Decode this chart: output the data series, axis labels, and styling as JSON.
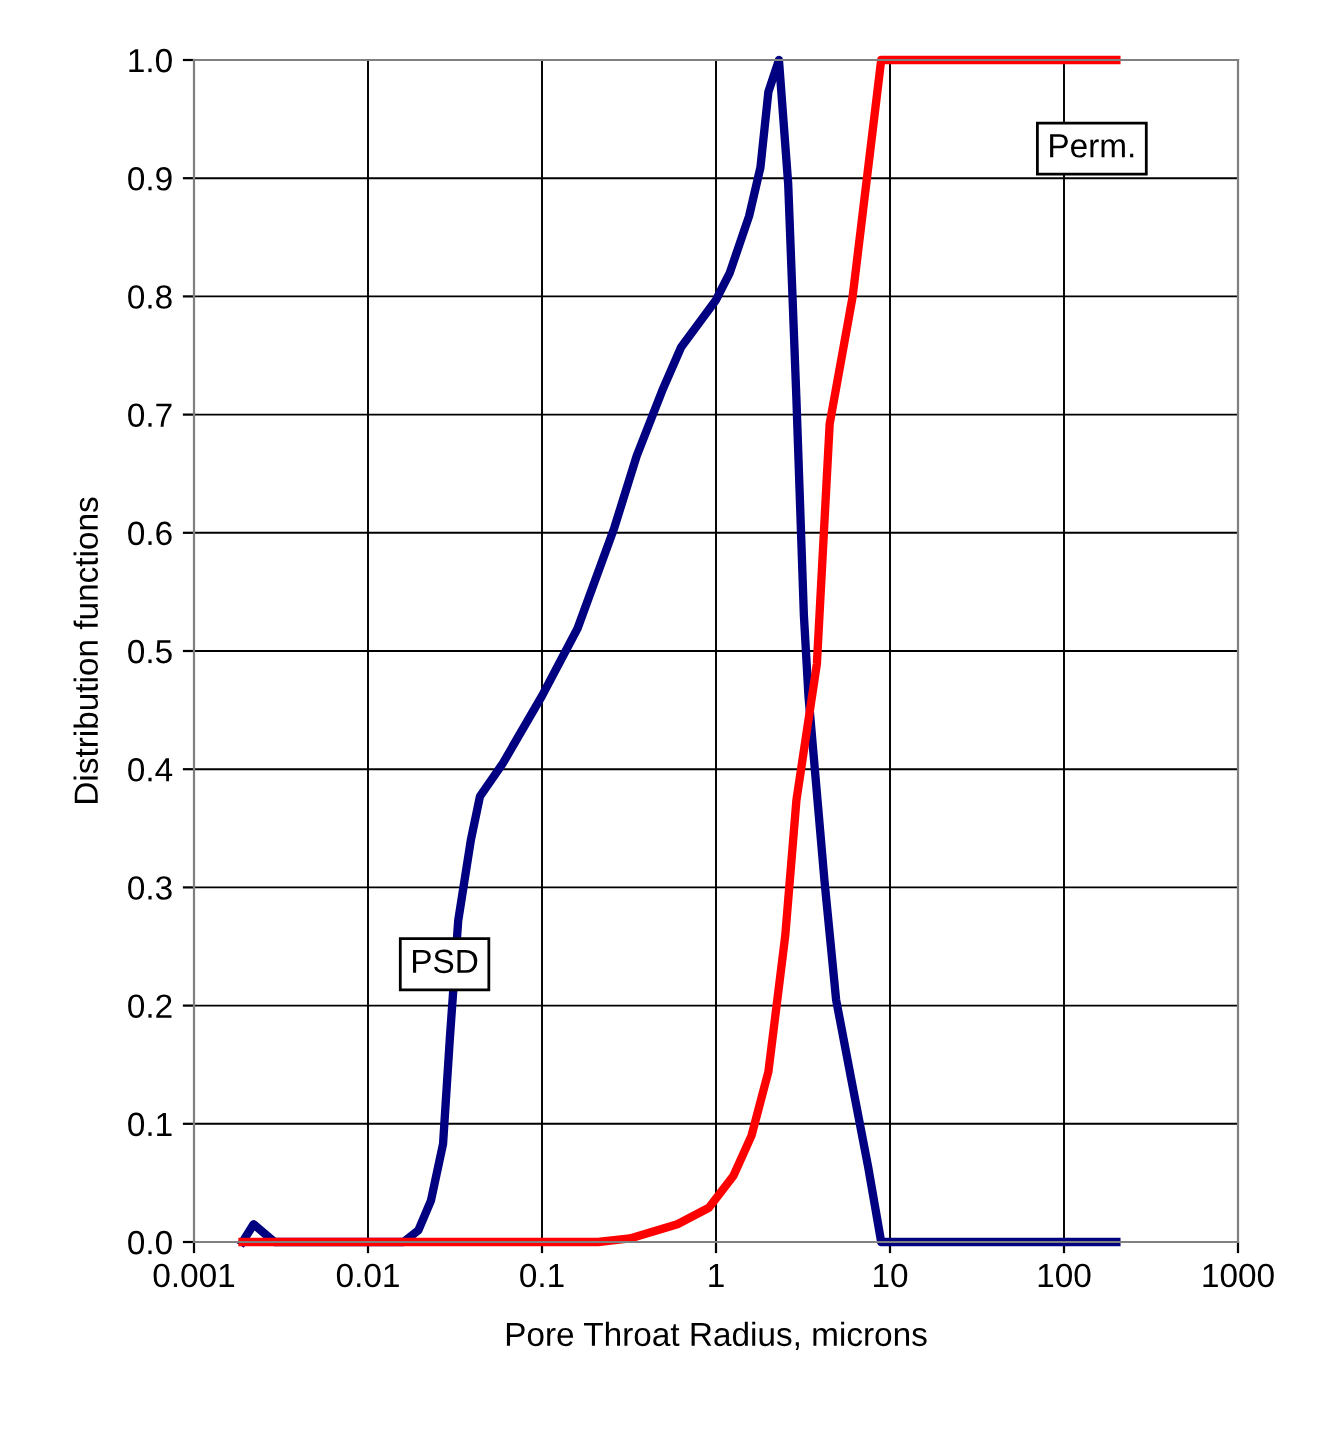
{
  "chart_data": {
    "type": "line",
    "xlabel": "Pore Throat Radius, microns",
    "ylabel": "Distribution functions",
    "log": "x",
    "xlim": [
      0.001,
      1000
    ],
    "xticks": [
      {
        "value": 0.001,
        "label": "0.001"
      },
      {
        "value": 0.01,
        "label": "0.01"
      },
      {
        "value": 0.1,
        "label": "0.1"
      },
      {
        "value": 1,
        "label": "1"
      },
      {
        "value": 10,
        "label": "10"
      },
      {
        "value": 100,
        "label": "100"
      },
      {
        "value": 1000,
        "label": "1000"
      }
    ],
    "ylim": [
      0,
      1
    ],
    "yticks": [
      {
        "value": 0,
        "label": "0.0"
      },
      {
        "value": 0.1,
        "label": "0.1"
      },
      {
        "value": 0.2,
        "label": "0.2"
      },
      {
        "value": 0.3,
        "label": "0.3"
      },
      {
        "value": 0.4,
        "label": "0.4"
      },
      {
        "value": 0.5,
        "label": "0.5"
      },
      {
        "value": 0.6,
        "label": "0.6"
      },
      {
        "value": 0.7,
        "label": "0.7"
      },
      {
        "value": 0.8,
        "label": "0.8"
      },
      {
        "value": 0.9,
        "label": "0.9"
      },
      {
        "value": 1,
        "label": "1.0"
      }
    ],
    "grid": true,
    "marker": "none",
    "line_style": "solid",
    "series": [
      {
        "name": "PSD",
        "color": "#000080",
        "x": [
          0.0019,
          0.0022,
          0.0029,
          0.016,
          0.0195,
          0.023,
          0.027,
          0.0295,
          0.033,
          0.039,
          0.044,
          0.059,
          0.1,
          0.16,
          0.26,
          0.35,
          0.49,
          0.63,
          1.0,
          1.2,
          1.55,
          1.8,
          2.0,
          2.3,
          2.6,
          2.9,
          3.2,
          3.4,
          4.2,
          4.9,
          6.0,
          7.5,
          8.9,
          200
        ],
        "values": [
          0,
          0.015,
          0,
          0,
          0.01,
          0.035,
          0.083,
          0.171,
          0.272,
          0.34,
          0.377,
          0.404,
          0.462,
          0.519,
          0.604,
          0.665,
          0.72,
          0.757,
          0.797,
          0.82,
          0.868,
          0.909,
          0.973,
          1.0,
          0.895,
          0.712,
          0.53,
          0.462,
          0.306,
          0.205,
          0.137,
          0.063,
          0,
          0
        ]
      },
      {
        "name": "Perm.",
        "color": "#ff0000",
        "x": [
          0.0019,
          0.21,
          0.32,
          0.6,
          0.91,
          1.26,
          1.6,
          2.0,
          2.5,
          2.9,
          3.8,
          4.5,
          6.1,
          8.9,
          200
        ],
        "values": [
          0,
          0,
          0.003,
          0.015,
          0.029,
          0.056,
          0.09,
          0.144,
          0.259,
          0.374,
          0.489,
          0.692,
          0.8,
          1.0,
          1.0
        ]
      }
    ]
  }
}
